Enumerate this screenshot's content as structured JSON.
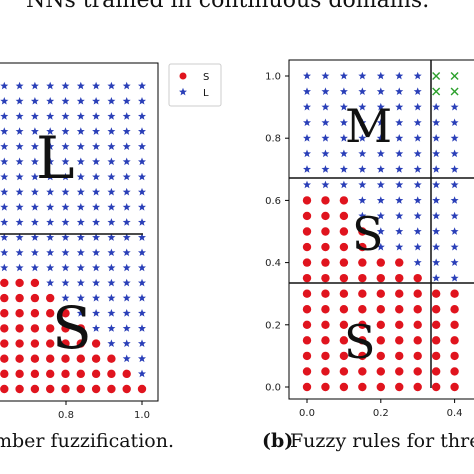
{
  "header_text": "NNs trained in continuous domains.",
  "chart_data": [
    {
      "type": "scatter",
      "panel": "a",
      "caption_text": "mber fuzzification.",
      "xlim": [
        0.0,
        1.0
      ],
      "ylim": [
        0.0,
        1.0
      ],
      "x_ticks": [
        "0.8",
        "1.0"
      ],
      "grid": false,
      "legend_position": "outside-right",
      "region_labels": [
        "L",
        "S"
      ],
      "series": [
        {
          "name": "S",
          "color": "#e0141e",
          "marker": "circle",
          "rule": "y < 0.40 (staircase boundary toward upper-right)"
        },
        {
          "name": "L",
          "color": "#2a3fb8",
          "marker": "star",
          "rule": "remaining grid points"
        }
      ],
      "threshold_line": {
        "y": 0.5,
        "orientation": "horizontal"
      }
    },
    {
      "type": "scatter",
      "panel": "b",
      "caption_label": "(b)",
      "caption_text": "Fuzzy rules for three-",
      "xlim": [
        0.0,
        0.5
      ],
      "ylim": [
        0.0,
        1.0
      ],
      "x_ticks": [
        "0.0",
        "0.2",
        "0.4"
      ],
      "y_ticks": [
        "0.0",
        "0.2",
        "0.4",
        "0.6",
        "0.8",
        "1.0"
      ],
      "grid": false,
      "region_labels": [
        "M",
        "S",
        "S"
      ],
      "series": [
        {
          "name": "S",
          "color": "#e0141e",
          "marker": "circle"
        },
        {
          "name": "L",
          "color": "#2a3fb8",
          "marker": "star"
        },
        {
          "name": "X",
          "color": "#2ca02c",
          "marker": "x"
        }
      ],
      "threshold_lines": [
        {
          "y": 0.667,
          "orientation": "horizontal"
        },
        {
          "y": 0.333,
          "orientation": "horizontal"
        },
        {
          "x": 0.333,
          "orientation": "vertical"
        }
      ]
    }
  ]
}
